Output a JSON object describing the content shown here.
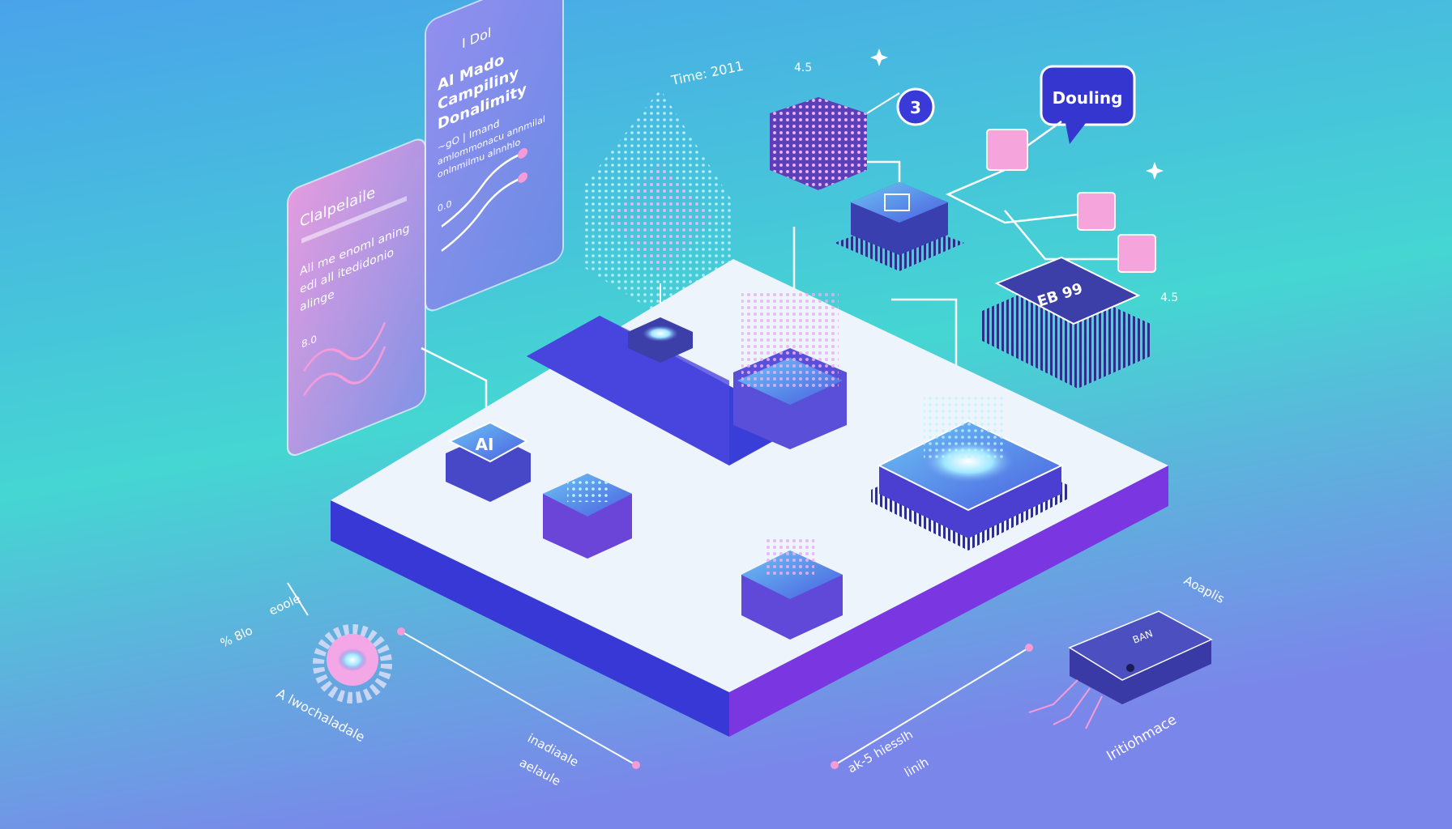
{
  "colors": {
    "bg_top": "#4aa3ea",
    "bg_mid": "#45d6d2",
    "bg_bottom": "#7b86ea",
    "platform_top": "#eef4fb",
    "platform_left": "#3838d6",
    "platform_right": "#7a36e0",
    "accent_pink": "#f59bd8",
    "chip_dark": "#3d3fa8"
  },
  "panels": {
    "left": {
      "title": "Clalpelaile",
      "lines": [
        "All me enoml aning",
        "edl all itedidonio",
        "alinge"
      ],
      "axis": "8.0"
    },
    "right": {
      "header": "I Dol",
      "title": [
        "AI Mado",
        "Campiliny",
        "Donalimity"
      ],
      "lines": [
        "~gO | Imand",
        "amlommonacu annmilal",
        "onlnmilmu alnnhlo"
      ],
      "axis": "0.0"
    }
  },
  "labels": {
    "time": "Time: 2011",
    "top_num": "4.5",
    "right_num": "4.5",
    "badge": "3",
    "bubble": "Douling",
    "ai_chip": "AI",
    "server_text": "EB 99",
    "bottom_left_a": "% 8lo",
    "bottom_left_b": "eoole",
    "bottom_left_c": "A lwochaladale",
    "bottom_mid_a": "inadiaale",
    "bottom_mid_b": "aelaule",
    "bottom_right_a": "ak-5 hiesslh",
    "bottom_right_b": "linih",
    "bottom_right_c": "Iritiohmace",
    "top_right_small": "Aoaplis",
    "small_chip_text": "BAN"
  }
}
